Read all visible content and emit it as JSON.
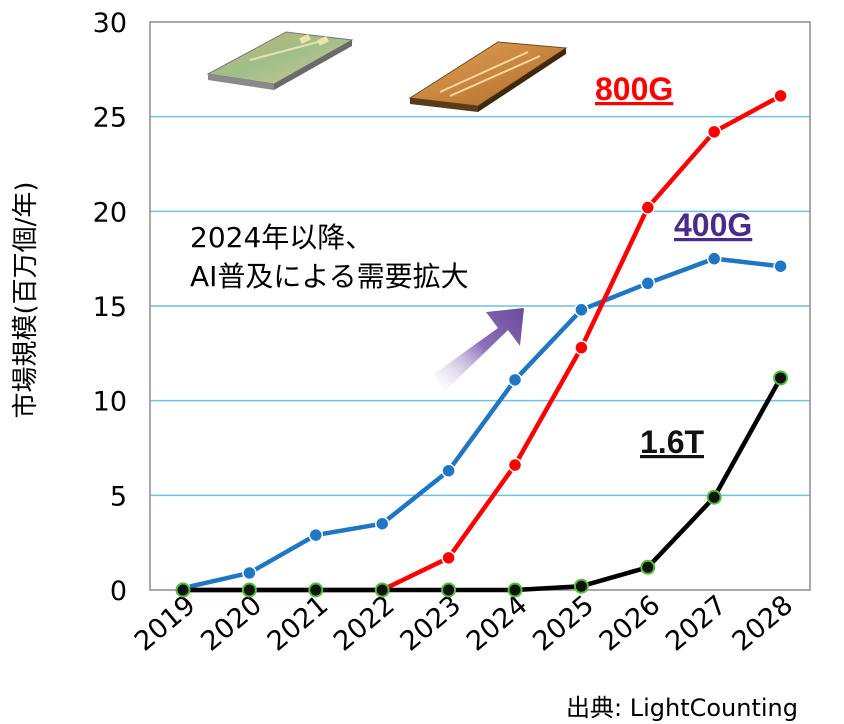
{
  "chart_data": {
    "type": "line",
    "ylabel": "市場規模(百万個/年)",
    "ylim": [
      0,
      30
    ],
    "y_ticks": [
      "0",
      "5",
      "10",
      "15",
      "20",
      "25",
      "30"
    ],
    "categories": [
      "2019",
      "2020",
      "2021",
      "2022",
      "2023",
      "2024",
      "2025",
      "2026",
      "2027",
      "2028"
    ],
    "grid": true,
    "series": [
      {
        "name": "400G",
        "color": "#1f77c4",
        "marker_fill": "#1f77c4",
        "values": [
          0.1,
          0.9,
          2.9,
          3.5,
          6.3,
          11.1,
          14.8,
          16.2,
          17.5,
          17.1
        ]
      },
      {
        "name": "800G",
        "color": "#ff0000",
        "marker_fill": "#ff0000",
        "values": [
          0,
          0,
          0,
          0,
          1.7,
          6.6,
          12.8,
          20.2,
          24.2,
          26.1
        ]
      },
      {
        "name": "1.6T",
        "color": "#000000",
        "marker_fill": "#3a8a2a",
        "values": [
          0,
          0,
          0,
          0,
          0,
          0,
          0.2,
          1.2,
          4.9,
          11.2
        ]
      }
    ],
    "labels": {
      "s800": {
        "text": "800G",
        "color": "#ff0000"
      },
      "s400": {
        "text": "400G",
        "color": "#4b2a8a"
      },
      "s16": {
        "text": "1.6T",
        "color": "#111111"
      }
    },
    "annotation": [
      "2024年以降、",
      "AI普及による需要拡大"
    ],
    "source": "出典: LightCounting",
    "colors": {
      "gridline": "#6ec1e4",
      "frame": "#8c8c8c",
      "arrow": "#7b5ba6"
    }
  }
}
